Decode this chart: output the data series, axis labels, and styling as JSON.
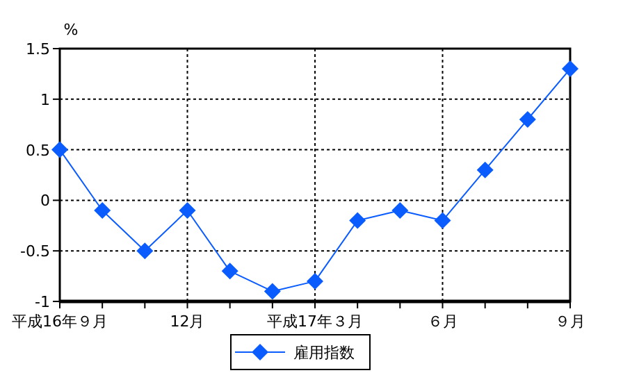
{
  "chart_data": {
    "type": "line",
    "ylabel": "%",
    "categories": [
      "平成16年９月",
      null,
      null,
      "12月",
      null,
      null,
      "平成17年３月",
      null,
      null,
      "６月",
      null,
      null,
      "９月"
    ],
    "series": [
      {
        "name": "雇用指数",
        "color": "#0a5cff",
        "values": [
          0.5,
          -0.1,
          -0.5,
          -0.1,
          -0.7,
          -0.9,
          -0.8,
          -0.2,
          -0.1,
          -0.2,
          0.3,
          0.8,
          1.3
        ]
      }
    ],
    "ylim": [
      -1,
      1.5
    ],
    "yticks": [
      -1,
      -0.5,
      0,
      0.5,
      1,
      1.5
    ],
    "grid": true,
    "legend": "bottom",
    "marker": "diamond",
    "line_style": "solid"
  }
}
